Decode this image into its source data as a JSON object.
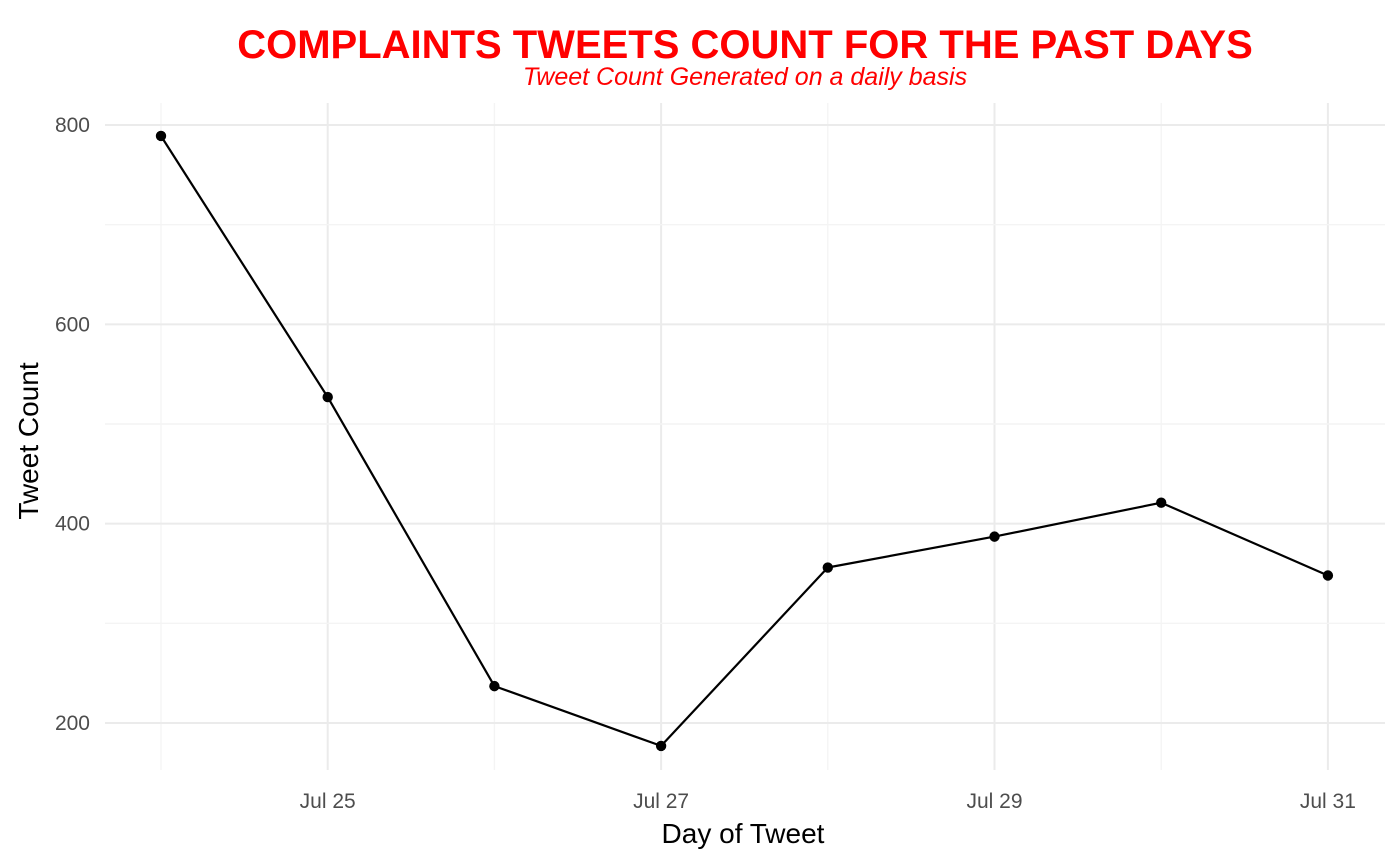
{
  "colors": {
    "title": "#ff0000",
    "subtitle": "#ff0000",
    "line": "#000000",
    "point": "#000000",
    "grid_major": "#ebebeb",
    "grid_minor": "#f4f4f4",
    "background": "#ffffff"
  },
  "chart_data": {
    "type": "line",
    "title": "COMPLAINTS TWEETS COUNT FOR THE PAST DAYS",
    "subtitle": "Tweet Count Generated on a daily basis",
    "xlabel": "Day of Tweet",
    "ylabel": "Tweet Count",
    "x": [
      "Jul 24",
      "Jul 25",
      "Jul 26",
      "Jul 27",
      "Jul 28",
      "Jul 29",
      "Jul 30",
      "Jul 31"
    ],
    "values": [
      789,
      527,
      237,
      177,
      356,
      387,
      421,
      348
    ],
    "x_ticks": [
      {
        "label": "Jul 25",
        "value": "Jul 25"
      },
      {
        "label": "Jul 27",
        "value": "Jul 27"
      },
      {
        "label": "Jul 29",
        "value": "Jul 29"
      },
      {
        "label": "Jul 31",
        "value": "Jul 31"
      }
    ],
    "y_ticks": [
      200,
      400,
      600,
      800
    ],
    "y_minor_ticks": [
      300,
      500,
      700
    ],
    "ylim": [
      150,
      810
    ],
    "grid": true,
    "legend": false,
    "markers": true
  }
}
